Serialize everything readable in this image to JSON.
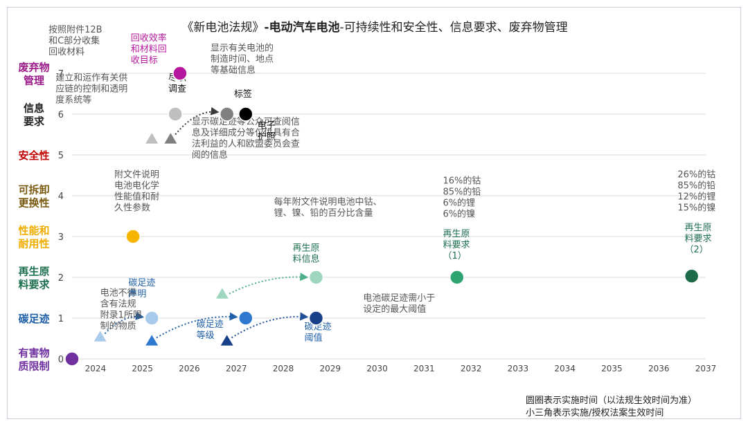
{
  "chart_data": {
    "type": "scatter",
    "title_prefix": "《新电池法规》",
    "title_bold": "-电动汽车电池",
    "title_suffix": "-可持续性和安全性、信息要求、废弃物管理",
    "x_ticks": [
      "2024",
      "2025",
      "2026",
      "2027",
      "2028",
      "2029",
      "2030",
      "2031",
      "2032",
      "2033",
      "2034",
      "2035",
      "2036",
      "2037"
    ],
    "xlim": [
      2023.5,
      2037.0
    ],
    "ylim": [
      0,
      7
    ],
    "y_ticks": [
      "0",
      "1",
      "2",
      "3",
      "4",
      "5",
      "6",
      "7"
    ],
    "y_labels": [
      {
        "y": 0,
        "lines": [
          "有害物",
          "质限制"
        ],
        "color": "#7030a0"
      },
      {
        "y": 1,
        "lines": [
          "碳足迹"
        ],
        "color": "#1f5fa8"
      },
      {
        "y": 2,
        "lines": [
          "再生原",
          "料要求"
        ],
        "color": "#1e7050"
      },
      {
        "y": 3,
        "lines": [
          "性能和",
          "耐用性"
        ],
        "color": "#f0ad00"
      },
      {
        "y": 4,
        "lines": [
          "可拆卸",
          "更换性"
        ],
        "color": "#7a5a10"
      },
      {
        "y": 5,
        "lines": [
          "安全性"
        ],
        "color": "#c00000"
      },
      {
        "y": 6,
        "lines": [
          "信息",
          "要求"
        ],
        "color": "#222222"
      },
      {
        "y": 7,
        "lines": [
          "废弃物",
          "管理"
        ],
        "color": "#9b1a8a"
      }
    ],
    "circles": [
      {
        "name": "harmful",
        "x": 2023.5,
        "y": 0,
        "color": "#7030a0"
      },
      {
        "name": "perf",
        "x": 2024.8,
        "y": 3,
        "color": "#f7b400"
      },
      {
        "name": "cf-declaration",
        "x": 2025.2,
        "y": 1,
        "color": "#a9cbeb"
      },
      {
        "name": "cf-class",
        "x": 2027.2,
        "y": 1,
        "color": "#2f78d0"
      },
      {
        "name": "cf-threshold",
        "x": 2028.7,
        "y": 1,
        "color": "#173f8a"
      },
      {
        "name": "recycled-info",
        "x": 2028.7,
        "y": 2,
        "color": "#9fd6bf"
      },
      {
        "name": "recycled-1",
        "x": 2031.7,
        "y": 2,
        "color": "#2fa473"
      },
      {
        "name": "recycled-2",
        "x": 2036.7,
        "y": 2.03,
        "color": "#1e6b4a"
      },
      {
        "name": "waste",
        "x": 2025.8,
        "y": 7,
        "color": "#b5179e"
      },
      {
        "name": "due-diligence",
        "x": 2025.7,
        "y": 6,
        "color": "#bfbfbf"
      },
      {
        "name": "label",
        "x": 2026.8,
        "y": 6,
        "color": "#808080"
      },
      {
        "name": "passport",
        "x": 2027.2,
        "y": 6,
        "color": "#000000"
      }
    ],
    "triangles": [
      {
        "name": "cf-declaration-act",
        "x": 2024.1,
        "y": 0.55,
        "color": "#a9cbeb"
      },
      {
        "name": "cf-class-act",
        "x": 2025.2,
        "y": 0.45,
        "color": "#2f78d0"
      },
      {
        "name": "cf-threshold-act",
        "x": 2026.8,
        "y": 0.45,
        "color": "#173f8a"
      },
      {
        "name": "recycled-act",
        "x": 2026.7,
        "y": 1.6,
        "color": "#9fd6bf"
      },
      {
        "name": "info-act-1",
        "x": 2025.2,
        "y": 5.4,
        "color": "#bfbfbf"
      },
      {
        "name": "info-act-2",
        "x": 2025.6,
        "y": 5.4,
        "color": "#808080"
      }
    ],
    "arrows": [
      {
        "from": [
          2024.2,
          0.62
        ],
        "to": [
          2025.0,
          1.03
        ],
        "color": "#1f5fa8"
      },
      {
        "from": [
          2025.3,
          0.52
        ],
        "to": [
          2027.0,
          1.03
        ],
        "color": "#1f5fa8"
      },
      {
        "from": [
          2026.9,
          0.52
        ],
        "to": [
          2028.5,
          1.03
        ],
        "color": "#1f4f98"
      },
      {
        "from": [
          2026.85,
          1.6
        ],
        "to": [
          2028.5,
          2.0
        ],
        "color": "#4fae8a"
      },
      {
        "from": [
          2025.7,
          5.5
        ],
        "to": [
          2026.6,
          6.05
        ],
        "color": "#3a3a3a"
      }
    ],
    "annotations": [
      {
        "x": 2024.1,
        "y": 1.55,
        "lines": [
          "电池不得",
          "含有法规",
          "附录1所限",
          "制的物质"
        ],
        "color": "#555555",
        "size": 13
      },
      {
        "x": 2024.7,
        "y": 1.8,
        "lines": [
          "碳足迹",
          "声明"
        ],
        "color": "#1f5fa8",
        "size": 13
      },
      {
        "x": 2026.15,
        "y": 0.78,
        "lines": [
          "碳足迹",
          "等级"
        ],
        "color": "#1f5fa8",
        "size": 13
      },
      {
        "x": 2028.45,
        "y": 0.72,
        "lines": [
          "碳足迹",
          "阈值"
        ],
        "color": "#1f5fa8",
        "size": 13
      },
      {
        "x": 2029.7,
        "y": 1.42,
        "lines": [
          "电池碳足迹需小于",
          "设定的最大阈值"
        ],
        "color": "#555555",
        "size": 13
      },
      {
        "x": 2028.2,
        "y": 2.65,
        "lines": [
          "再生原",
          "料信息"
        ],
        "color": "#1e7050",
        "size": 13
      },
      {
        "x": 2027.8,
        "y": 3.78,
        "lines": [
          "每年附文件说明电池中钴、",
          "锂、镍、铅的百分比含量"
        ],
        "color": "#555555",
        "size": 13
      },
      {
        "x": 2031.4,
        "y": 4.3,
        "lines": [
          "16%的钴",
          "85%的铅",
          "6%的锂",
          "6%的镍"
        ],
        "color": "#555555",
        "size": 13
      },
      {
        "x": 2031.4,
        "y": 3.0,
        "lines": [
          "再生原",
          "料要求",
          "（1）"
        ],
        "color": "#1e7050",
        "size": 13
      },
      {
        "x": 2036.4,
        "y": 4.45,
        "lines": [
          "26%的钴",
          "85%的铅",
          "12%的锂",
          "15%的镍"
        ],
        "color": "#555555",
        "size": 13
      },
      {
        "x": 2036.55,
        "y": 3.15,
        "lines": [
          "再生原",
          "料要求",
          "（2）"
        ],
        "color": "#1e7050",
        "size": 13
      },
      {
        "x": 2024.4,
        "y": 4.45,
        "lines": [
          "附文件说明",
          "电池电化学",
          "性能值和耐",
          "久性参数"
        ],
        "color": "#555555",
        "size": 13
      },
      {
        "x": 2026.05,
        "y": 5.75,
        "lines": [
          "显示碳足迹等公众可查阅信",
          "息及详细成分等仅供具有合",
          "法利益的人和欧盟委员会查",
          "阅的信息"
        ],
        "color": "#555555",
        "size": 13
      },
      {
        "x": 2027.45,
        "y": 5.65,
        "lines": [
          "电子",
          "护照"
        ],
        "color": "#111111",
        "size": 13
      },
      {
        "x": 2026.95,
        "y": 6.42,
        "lines": [
          "标签"
        ],
        "color": "#111111",
        "size": 13
      },
      {
        "x": 2025.55,
        "y": 6.82,
        "lines": [
          "尽职",
          "调查"
        ],
        "color": "#111111",
        "size": 13
      },
      {
        "x": 2023.15,
        "y": 6.82,
        "lines": [
          "建立和运作有关供",
          "应链的控制和透明",
          "度系统等"
        ],
        "color": "#555555",
        "size": 13
      },
      {
        "x": 2023.0,
        "y": 8.0,
        "lines": [
          "按照附件12B",
          "和C部分收集",
          "回收材料"
        ],
        "color": "#555555",
        "size": 13
      },
      {
        "x": 2024.75,
        "y": 7.8,
        "lines": [
          "回收效率",
          "和材料回",
          "收目标"
        ],
        "color": "#b5179e",
        "size": 13
      },
      {
        "x": 2026.45,
        "y": 7.55,
        "lines": [
          "显示有关电池的",
          "制造时间、地点",
          "等基础信息"
        ],
        "color": "#555555",
        "size": 13
      }
    ]
  },
  "footnotes": {
    "circle_note": "圆圈表示实施时间（以法规生效时间为准）",
    "triangle_note": "小三角表示实施/授权法案生效时间"
  }
}
